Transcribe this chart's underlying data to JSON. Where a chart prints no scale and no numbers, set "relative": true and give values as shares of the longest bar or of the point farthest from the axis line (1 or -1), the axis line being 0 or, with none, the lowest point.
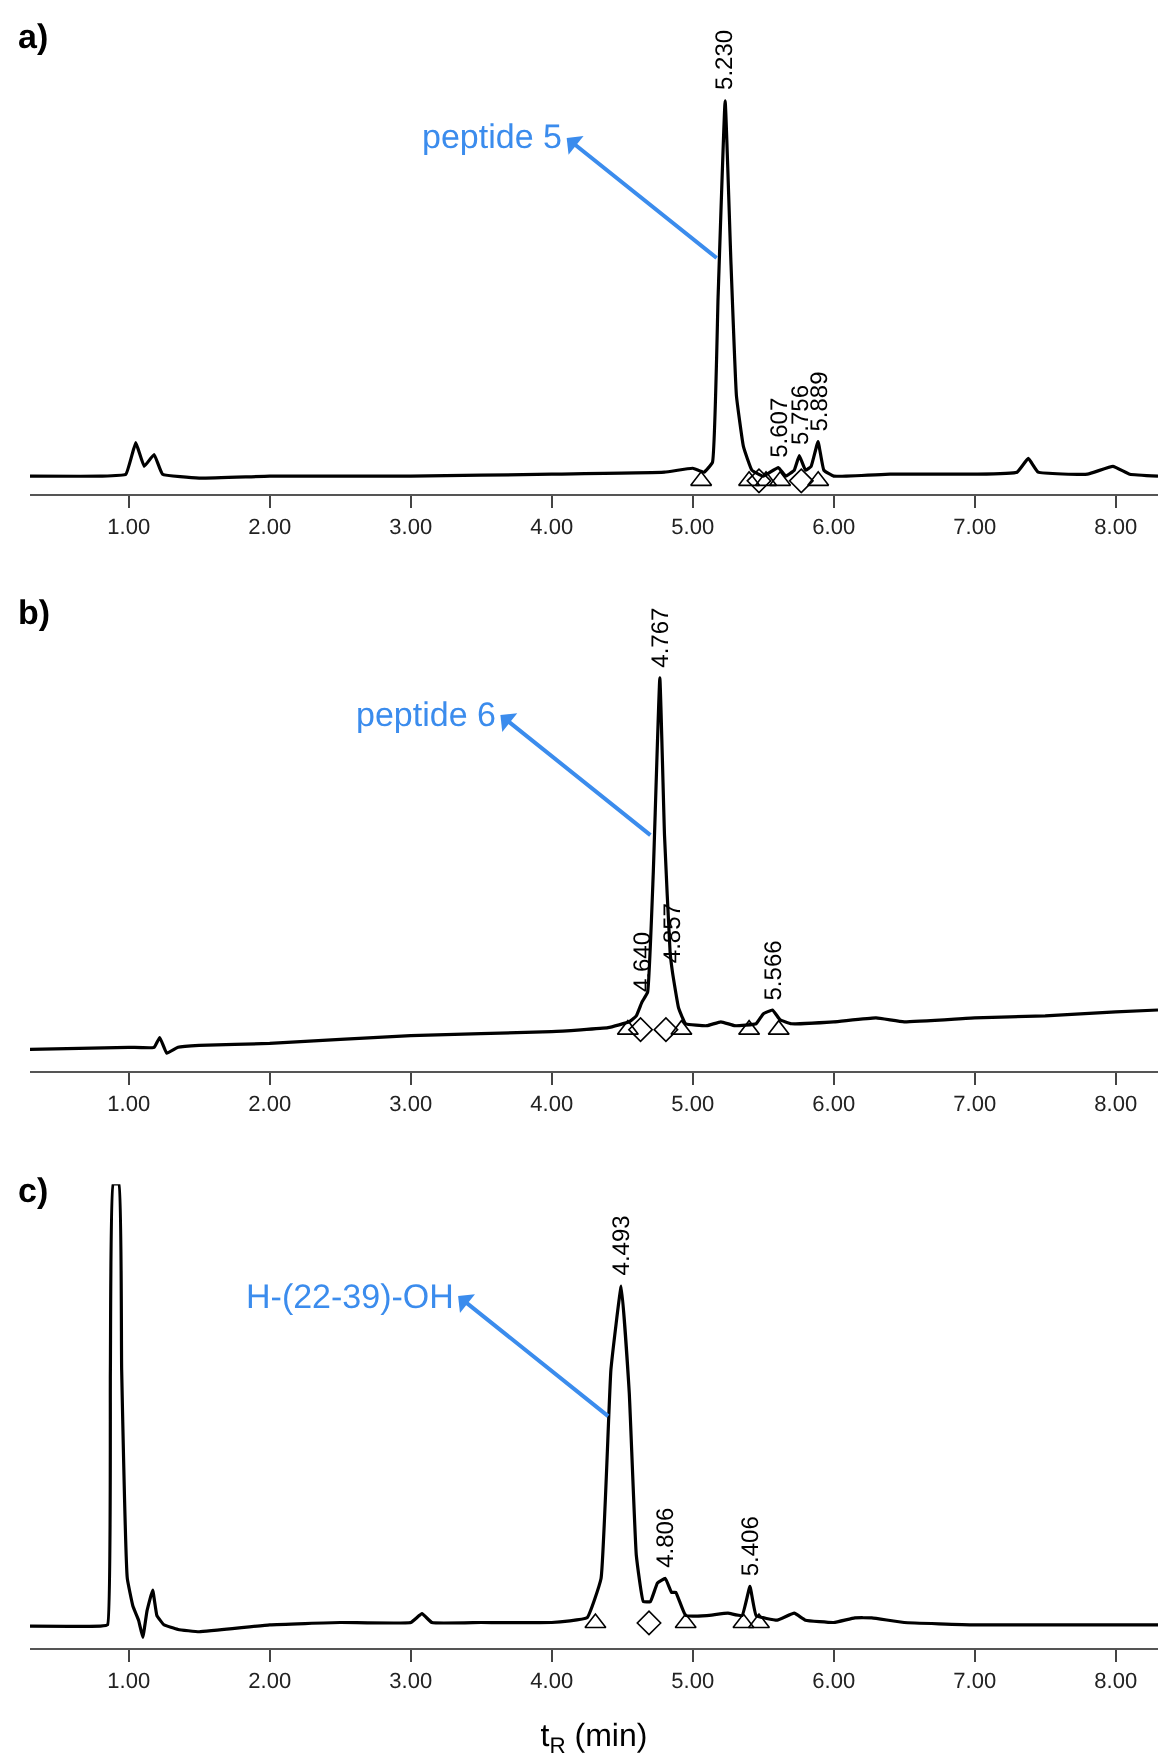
{
  "chart_data": [
    {
      "type": "line",
      "title": "a)",
      "relative": true,
      "xlim": [
        0.3,
        8.3
      ],
      "xticks": [
        {
          "value": 1,
          "label": "1.00"
        },
        {
          "value": 2,
          "label": "2.00"
        },
        {
          "value": 3,
          "label": "3.00"
        },
        {
          "value": 4,
          "label": "4.00"
        },
        {
          "value": 5,
          "label": "5.00"
        },
        {
          "value": 6,
          "label": "6.00"
        },
        {
          "value": 7,
          "label": "7.00"
        },
        {
          "value": 8,
          "label": "8.00"
        }
      ],
      "series": [
        {
          "color": "#000000",
          "x": [
            0.3,
            0.8,
            0.98,
            1.05,
            1.11,
            1.18,
            1.24,
            1.5,
            2.0,
            3.0,
            4.0,
            4.8,
            5.0,
            5.08,
            5.14,
            5.18,
            5.23,
            5.27,
            5.31,
            5.36,
            5.42,
            5.5,
            5.607,
            5.66,
            5.72,
            5.756,
            5.8,
            5.84,
            5.889,
            5.93,
            6.0,
            6.4,
            7.0,
            7.3,
            7.38,
            7.45,
            7.8,
            7.98,
            8.1,
            8.3
          ],
          "values": [
            0.045,
            0.045,
            0.05,
            0.13,
            0.07,
            0.1,
            0.05,
            0.04,
            0.045,
            0.045,
            0.05,
            0.055,
            0.065,
            0.055,
            0.08,
            0.5,
            1.0,
            0.6,
            0.25,
            0.12,
            0.06,
            0.045,
            0.067,
            0.045,
            0.06,
            0.097,
            0.06,
            0.07,
            0.133,
            0.06,
            0.045,
            0.05,
            0.05,
            0.055,
            0.09,
            0.055,
            0.05,
            0.07,
            0.05,
            0.045
          ]
        },
        {
          "type": "scatter",
          "marker": "triangle",
          "color": "#000000",
          "x": [
            5.06,
            5.4,
            5.52,
            5.62,
            5.89
          ],
          "values": [
            0.033,
            0.033,
            0.033,
            0.033,
            0.033
          ]
        },
        {
          "type": "scatter",
          "marker": "diamond",
          "color": "#000000",
          "x": [
            5.47,
            5.77
          ],
          "values": [
            0.033,
            0.033
          ]
        }
      ],
      "annotations": [
        {
          "text": "peptide 5",
          "x": 5.17,
          "y": 0.6
        },
        {
          "text": "5.230",
          "x": 5.23,
          "y": 1.0
        },
        {
          "text": "5.607",
          "x": 5.607,
          "y": 0.067
        },
        {
          "text": "5.756",
          "x": 5.756,
          "y": 0.097
        },
        {
          "text": "5.889",
          "x": 5.889,
          "y": 0.133
        }
      ]
    },
    {
      "type": "line",
      "title": "b)",
      "relative": true,
      "xlim": [
        0.3,
        8.3
      ],
      "xticks": [
        {
          "value": 1,
          "label": "1.00"
        },
        {
          "value": 2,
          "label": "2.00"
        },
        {
          "value": 3,
          "label": "3.00"
        },
        {
          "value": 4,
          "label": "4.00"
        },
        {
          "value": 5,
          "label": "5.00"
        },
        {
          "value": 6,
          "label": "6.00"
        },
        {
          "value": 7,
          "label": "7.00"
        },
        {
          "value": 8,
          "label": "8.00"
        }
      ],
      "series": [
        {
          "color": "#000000",
          "x": [
            0.3,
            1.0,
            1.18,
            1.22,
            1.27,
            1.35,
            1.5,
            2.0,
            3.0,
            4.0,
            4.4,
            4.55,
            4.6,
            4.64,
            4.68,
            4.72,
            4.767,
            4.8,
            4.84,
            4.857,
            4.9,
            4.95,
            5.1,
            5.2,
            5.3,
            5.45,
            5.5,
            5.566,
            5.62,
            5.7,
            6.0,
            6.3,
            6.5,
            7.0,
            7.5,
            8.0,
            8.3
          ],
          "values": [
            0.055,
            0.06,
            0.06,
            0.085,
            0.045,
            0.06,
            0.065,
            0.07,
            0.09,
            0.1,
            0.11,
            0.125,
            0.14,
            0.175,
            0.2,
            0.5,
            1.0,
            0.6,
            0.3,
            0.25,
            0.16,
            0.12,
            0.115,
            0.125,
            0.115,
            0.12,
            0.145,
            0.155,
            0.13,
            0.12,
            0.125,
            0.135,
            0.125,
            0.135,
            0.14,
            0.15,
            0.155
          ]
        },
        {
          "type": "scatter",
          "marker": "triangle",
          "color": "#000000",
          "x": [
            4.54,
            4.92,
            5.4,
            5.61
          ],
          "values": [
            0.105,
            0.105,
            0.105,
            0.105
          ]
        },
        {
          "type": "scatter",
          "marker": "diamond",
          "color": "#000000",
          "x": [
            4.63,
            4.81
          ],
          "values": [
            0.105,
            0.105
          ]
        }
      ],
      "annotations": [
        {
          "text": "peptide 6",
          "x": 4.7,
          "y": 0.6
        },
        {
          "text": "4.767",
          "x": 4.767,
          "y": 1.0
        },
        {
          "text": "4.640",
          "x": 4.64,
          "y": 0.175
        },
        {
          "text": "4.857",
          "x": 4.857,
          "y": 0.25
        },
        {
          "text": "5.566",
          "x": 5.566,
          "y": 0.155
        }
      ]
    },
    {
      "type": "line",
      "title": "c)",
      "relative": true,
      "xlabel": "t$_{R}$ (min)",
      "xlim": [
        0.3,
        8.3
      ],
      "xticks": [
        {
          "value": 1,
          "label": "1.00"
        },
        {
          "value": 2,
          "label": "2.00"
        },
        {
          "value": 3,
          "label": "3.00"
        },
        {
          "value": 4,
          "label": "4.00"
        },
        {
          "value": 5,
          "label": "5.00"
        },
        {
          "value": 6,
          "label": "6.00"
        },
        {
          "value": 7,
          "label": "7.00"
        },
        {
          "value": 8,
          "label": "8.00"
        }
      ],
      "series": [
        {
          "color": "#000000",
          "x": [
            0.3,
            0.8,
            0.85,
            0.87,
            0.89,
            0.93,
            0.95,
            0.99,
            1.03,
            1.07,
            1.1,
            1.13,
            1.17,
            1.2,
            1.25,
            1.35,
            1.5,
            2.0,
            2.5,
            3.0,
            3.08,
            3.15,
            3.5,
            4.0,
            4.25,
            4.35,
            4.42,
            4.493,
            4.55,
            4.6,
            4.65,
            4.7,
            4.75,
            4.806,
            4.85,
            4.88,
            4.95,
            5.1,
            5.25,
            5.35,
            5.406,
            5.45,
            5.6,
            5.72,
            5.8,
            6.0,
            6.15,
            6.27,
            6.5,
            7.0,
            7.5,
            8.0,
            8.3
          ],
          "values": [
            0.047,
            0.047,
            0.05,
            0.6,
            1.0,
            1.0,
            0.6,
            0.15,
            0.09,
            0.06,
            0.023,
            0.08,
            0.125,
            0.07,
            0.05,
            0.04,
            0.035,
            0.05,
            0.055,
            0.055,
            0.074,
            0.055,
            0.055,
            0.055,
            0.065,
            0.15,
            0.6,
            0.78,
            0.55,
            0.2,
            0.1,
            0.1,
            0.14,
            0.15,
            0.12,
            0.12,
            0.07,
            0.07,
            0.075,
            0.07,
            0.133,
            0.07,
            0.06,
            0.075,
            0.06,
            0.055,
            0.065,
            0.065,
            0.055,
            0.05,
            0.05,
            0.05,
            0.05
          ]
        },
        {
          "type": "scatter",
          "marker": "triangle",
          "color": "#000000",
          "x": [
            4.31,
            4.95,
            5.36,
            5.47
          ],
          "values": [
            0.054,
            0.054,
            0.054,
            0.054
          ]
        },
        {
          "type": "scatter",
          "marker": "diamond",
          "color": "#000000",
          "x": [
            4.69
          ],
          "values": [
            0.054
          ]
        }
      ],
      "annotations": [
        {
          "text": "H-(22-39)-OH",
          "x": 4.4,
          "y": 0.5
        },
        {
          "text": "4.493",
          "x": 4.493,
          "y": 0.78
        },
        {
          "text": "4.806",
          "x": 4.806,
          "y": 0.15
        },
        {
          "text": "5.406",
          "x": 5.406,
          "y": 0.133
        }
      ]
    }
  ]
}
